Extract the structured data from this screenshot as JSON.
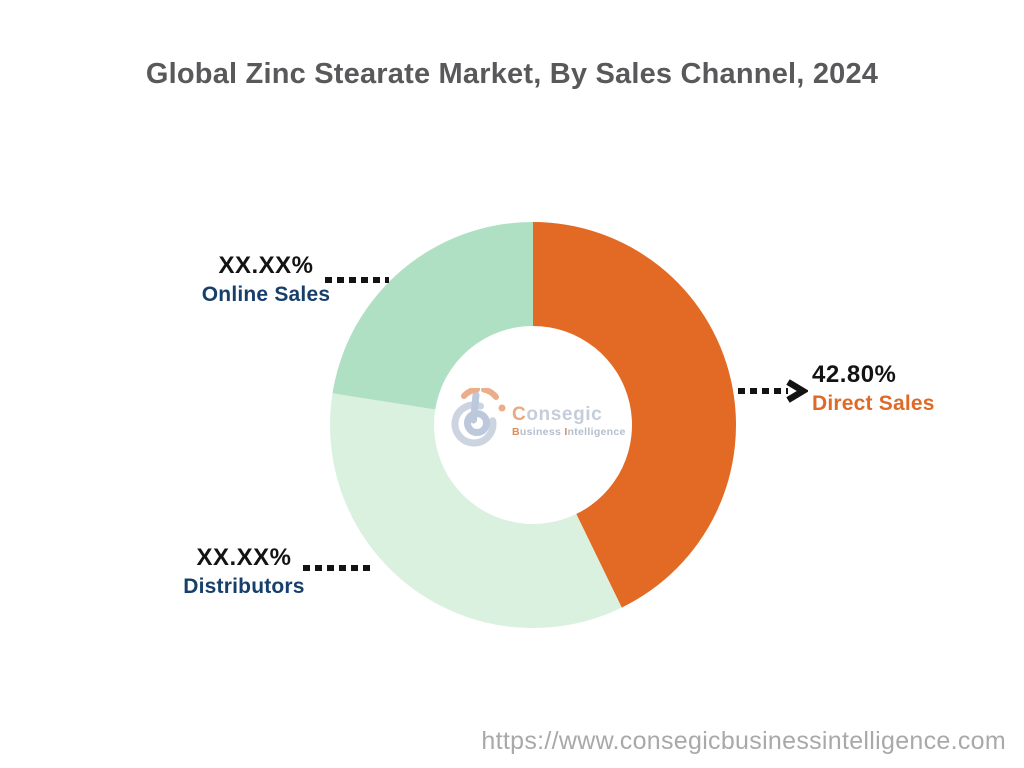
{
  "title": "Global Zinc Stearate Market, By Sales Channel, 2024",
  "footer": {
    "url": "https://www.consegicbusinessintelligence.com"
  },
  "logo": {
    "brand_first": "C",
    "brand_rest": "onsegic",
    "tagline_first": "B",
    "tagline_business": "usiness ",
    "tagline_second": "I",
    "tagline_rest": "ntelligence"
  },
  "chart_data": {
    "type": "pie",
    "subtype": "donut",
    "title": "Global Zinc Stearate Market, By Sales Channel, 2024",
    "start_angle_deg": 0,
    "direction": "clockwise",
    "inner_radius_ratio": 0.49,
    "legend_position": "callouts",
    "segments": [
      {
        "label": "Direct Sales",
        "display_value": "42.80%",
        "value": 42.8,
        "color": "#E26A24",
        "label_color": "#DE6A28"
      },
      {
        "label": "Distributors",
        "display_value": "XX.XX%",
        "value": 34.7,
        "color": "#D9F1DE",
        "label_color": "#173F6B"
      },
      {
        "label": "Online Sales",
        "display_value": "XX.XX%",
        "value": 22.5,
        "color": "#AFE0C3",
        "label_color": "#173F6B"
      }
    ],
    "connector_color": "#131313"
  }
}
